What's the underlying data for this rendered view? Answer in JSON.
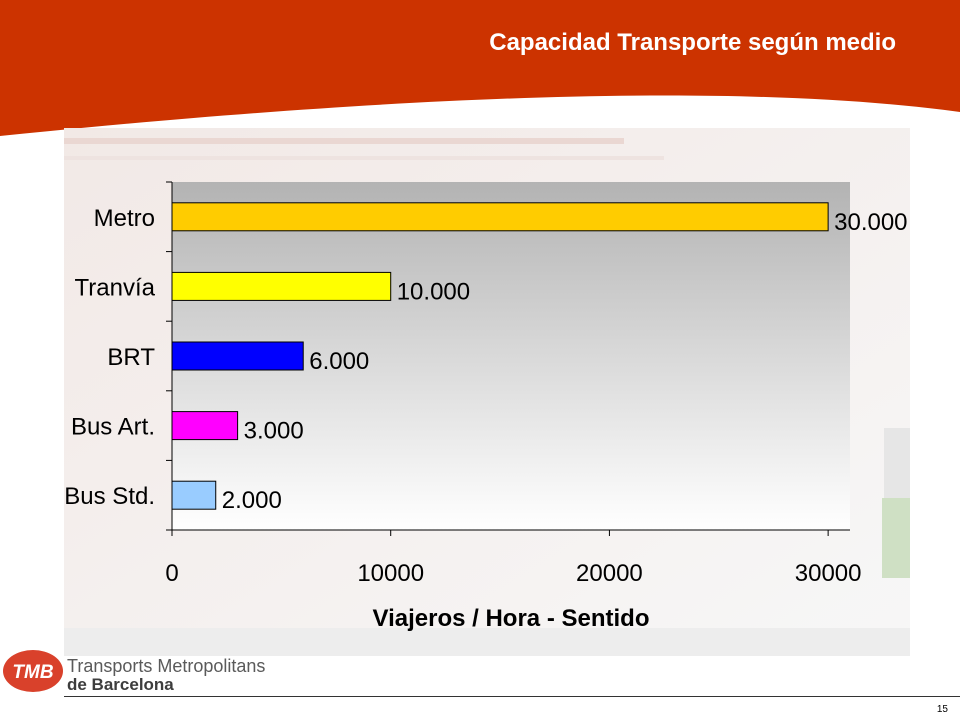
{
  "slide": {
    "title": "Capacidad Transporte según medio",
    "page_number": "15"
  },
  "brand": {
    "logo_text": "TMB",
    "line1": "Transports Metropolitans",
    "line2": "de Barcelona",
    "colors": {
      "header": "#cc3300",
      "logo": "#d9412b"
    }
  },
  "chart_data": {
    "type": "bar",
    "orientation": "horizontal",
    "title": "",
    "xlabel": "Viajeros / Hora - Sentido",
    "ylabel": "",
    "xlim": [
      0,
      31000
    ],
    "x_ticks": [
      0,
      10000,
      20000,
      30000
    ],
    "x_tick_labels": [
      "0",
      "10000",
      "20000",
      "30000"
    ],
    "grid": false,
    "legend": "none",
    "categories": [
      "Metro",
      "Tranvía",
      "BRT",
      "Bus Art.",
      "Bus Std."
    ],
    "values": [
      30000,
      10000,
      6000,
      3000,
      2000
    ],
    "value_labels": [
      "30.000",
      "10.000",
      "6.000",
      "3.000",
      "2.000"
    ],
    "colors": [
      "#ffcc00",
      "#ffff00",
      "#0000ff",
      "#ff00ff",
      "#99ccff"
    ]
  }
}
